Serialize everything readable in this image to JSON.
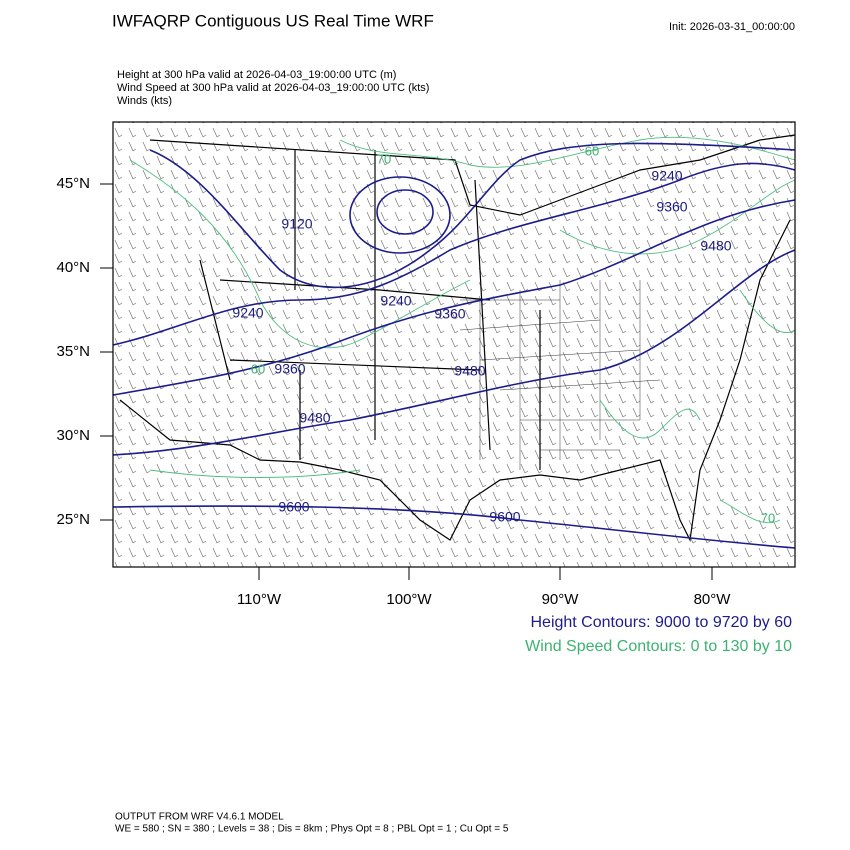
{
  "header": {
    "title": "IWFAQRP Contiguous US Real Time WRF",
    "init": "Init: 2026-03-31_00:00:00"
  },
  "fields": [
    "Height at 300 hPa valid at 2026-04-03_19:00:00 UTC   (m)",
    "Wind Speed at 300 hPa valid at 2026-04-03_19:00:00 UTC   (kts)",
    "Winds   (kts)"
  ],
  "map": {
    "lat_labels": [
      "45°N",
      "40°N",
      "35°N",
      "30°N",
      "25°N"
    ],
    "lon_labels": [
      "110°W",
      "100°W",
      "90°W",
      "80°W"
    ],
    "height_labels": [
      "9120",
      "9240",
      "9360",
      "9480",
      "9240",
      "9360",
      "9240",
      "9360",
      "9480",
      "9480",
      "9600",
      "9600"
    ],
    "wind_labels": [
      "70",
      "60",
      "60",
      "70"
    ]
  },
  "legend": {
    "height": "Height Contours: 9000 to 9720 by 60",
    "wind": "Wind Speed Contours: 0 to 130 by 10"
  },
  "footer": [
    "OUTPUT FROM WRF V4.6.1 MODEL",
    "WE = 580 ; SN = 380 ; Levels = 38 ; Dis = 8km ; Phys Opt = 8 ; PBL Opt = 1 ; Cu Opt = 5"
  ]
}
